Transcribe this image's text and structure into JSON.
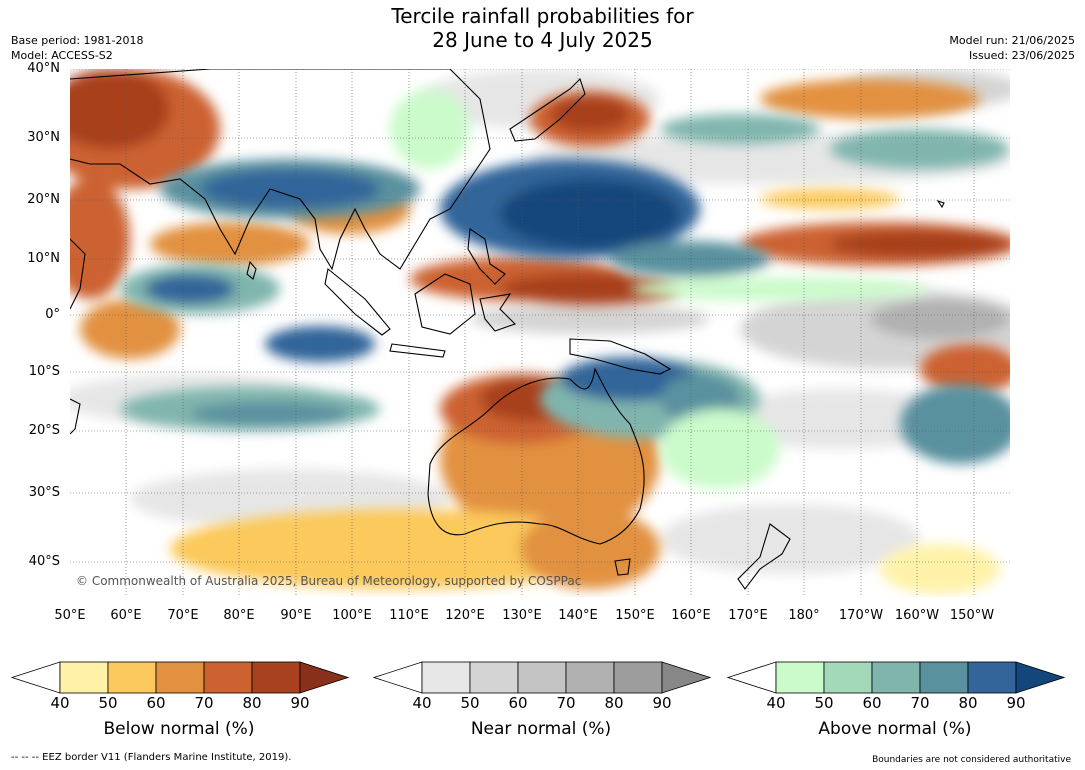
{
  "title_line1": "Tercile rainfall probabilities for",
  "title_line2": "28 June to 4 July 2025",
  "base_period": "Base period: 1981-2018",
  "model": "Model: ACCESS-S2",
  "model_run": "Model run: 21/06/2025",
  "issued": "Issued: 23/06/2025",
  "copyright": "© Commonwealth of Australia 2025, Bureau of Meteorology, supported by COSPPac",
  "lat_labels": [
    "40°N",
    "30°N",
    "20°N",
    "10°N",
    "0°",
    "10°S",
    "20°S",
    "30°S",
    "40°S"
  ],
  "lon_labels": [
    "50°E",
    "60°E",
    "70°E",
    "80°E",
    "90°E",
    "100°E",
    "110°E",
    "120°E",
    "130°E",
    "140°E",
    "150°E",
    "160°E",
    "170°E",
    "180°",
    "170°W",
    "160°W",
    "150°W"
  ],
  "colorbars": [
    {
      "name": "below",
      "title": "Below normal (%)",
      "ticks": [
        "40",
        "50",
        "60",
        "70",
        "80",
        "90"
      ],
      "colors": [
        "#fff2a8",
        "#fbc95c",
        "#e29141",
        "#cc6230",
        "#a8411f",
        "#88301a"
      ]
    },
    {
      "name": "near",
      "title": "Near normal (%)",
      "ticks": [
        "40",
        "50",
        "60",
        "70",
        "80",
        "90"
      ],
      "colors": [
        "#e6e6e6",
        "#d4d4d4",
        "#c3c3c3",
        "#b1b1b1",
        "#9d9d9d",
        "#878787"
      ]
    },
    {
      "name": "above",
      "title": "Above normal (%)",
      "ticks": [
        "40",
        "50",
        "60",
        "70",
        "80",
        "90"
      ],
      "colors": [
        "#cbfbcb",
        "#a3d8b8",
        "#80b5ae",
        "#5a919f",
        "#33659a",
        "#13477c"
      ]
    }
  ],
  "footnote_left": "--  --  -- EEZ border V11 (Flanders Marine Institute, 2019).",
  "footnote_right": "Boundaries are not considered authoritative"
}
